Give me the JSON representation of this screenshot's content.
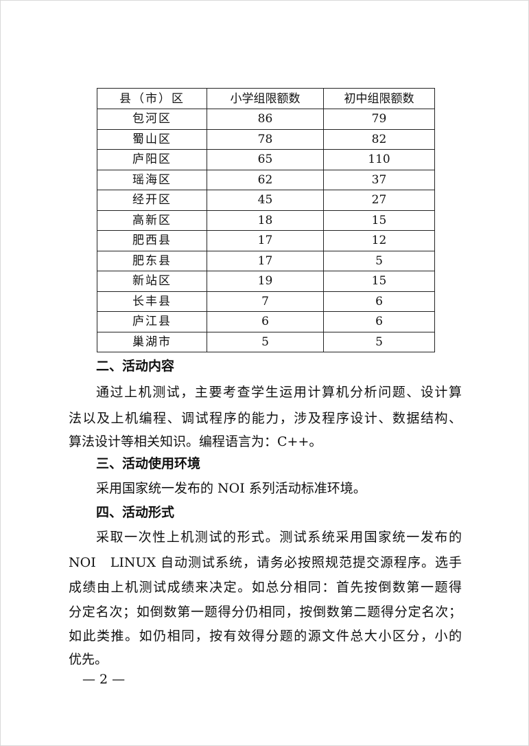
{
  "table": {
    "headers": [
      "县（市）区",
      "小学组限额数",
      "初中组限额数"
    ],
    "rows": [
      [
        "包河区",
        "86",
        "79"
      ],
      [
        "蜀山区",
        "78",
        "82"
      ],
      [
        "庐阳区",
        "65",
        "110"
      ],
      [
        "瑶海区",
        "62",
        "37"
      ],
      [
        "经开区",
        "45",
        "27"
      ],
      [
        "高新区",
        "18",
        "15"
      ],
      [
        "肥西县",
        "17",
        "12"
      ],
      [
        "肥东县",
        "17",
        "5"
      ],
      [
        "新站区",
        "19",
        "15"
      ],
      [
        "长丰县",
        "7",
        "6"
      ],
      [
        "庐江县",
        "6",
        "6"
      ],
      [
        "巢湖市",
        "5",
        "5"
      ]
    ]
  },
  "sections": [
    {
      "heading": "二、活动内容",
      "lines": [
        "通过上机测试，主要考查学生运用计算机分析问题、设计算",
        "法以及上机编程、调试程序的能力，涉及程序设计、数据结构、",
        "算法设计等相关知识。编程语言为：C++。"
      ]
    },
    {
      "heading": "三、活动使用环境",
      "lines": [
        "采用国家统一发布的 NOI 系列活动标准环境。"
      ]
    },
    {
      "heading": "四、活动形式",
      "lines": [
        "采取一次性上机测试的形式。测试系统采用国家统一发布的",
        "NOI　LINUX 自动测试系统，请务必按照规范提交源程序。选手",
        "成绩由上机测试成绩来决定。如总分相同：首先按倒数第一题得",
        "分定名次；如倒数第一题得分仍相同，按倒数第二题得分定名次；",
        "如此类推。如仍相同，按有效得分题的源文件总大小区分，小的",
        "优先。"
      ]
    }
  ],
  "page_number": "— 2 —"
}
